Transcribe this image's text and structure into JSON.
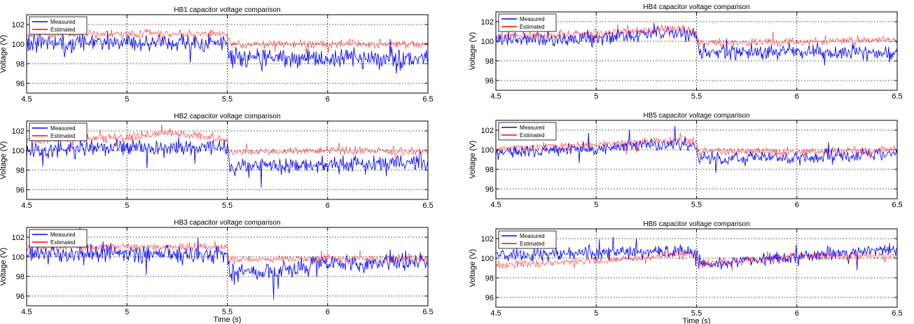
{
  "chart_data": [
    {
      "type": "line",
      "title": "HB1 capacitor voltage comparison",
      "xlabel": "",
      "ylabel": "Voltage (V)",
      "xlim": [
        4.5,
        6.5
      ],
      "ylim": [
        95,
        103
      ],
      "xticks": [
        4.5,
        5,
        5.5,
        6,
        6.5
      ],
      "xtick_labels": [
        "4.5",
        "5",
        "5.5",
        "6",
        "6.5"
      ],
      "yticks": [
        96,
        98,
        100,
        102
      ],
      "ytick_labels": [
        "96",
        "98",
        "100",
        "102"
      ],
      "grid": true,
      "legend_position": "top-left",
      "series": [
        {
          "name": "Measured",
          "color": "#0000ff",
          "x": [
            4.5,
            5.0,
            5.5,
            5.51,
            6.0,
            6.5
          ],
          "y": [
            100.2,
            100.2,
            100.0,
            98.6,
            98.6,
            98.4
          ],
          "noise": 1.4
        },
        {
          "name": "Estimated",
          "color": "#ff0000",
          "x": [
            4.5,
            5.0,
            5.5,
            5.51,
            6.0,
            6.5
          ],
          "y": [
            101.0,
            101.1,
            101.0,
            100.0,
            100.0,
            100.0
          ],
          "noise": 0.6
        }
      ]
    },
    {
      "type": "line",
      "title": "HB2 capacitor voltage comparison",
      "xlabel": "",
      "ylabel": "Voltage (V)",
      "xlim": [
        4.5,
        6.5
      ],
      "ylim": [
        95,
        103
      ],
      "xticks": [
        4.5,
        5,
        5.5,
        6,
        6.5
      ],
      "xtick_labels": [
        "4.5",
        "5",
        "5.5",
        "6",
        "6.5"
      ],
      "yticks": [
        96,
        98,
        100,
        102
      ],
      "ytick_labels": [
        "96",
        "98",
        "100",
        "102"
      ],
      "grid": true,
      "legend_position": "top-left",
      "series": [
        {
          "name": "Measured",
          "color": "#0000ff",
          "x": [
            4.5,
            5.0,
            5.5,
            5.51,
            6.0,
            6.5
          ],
          "y": [
            100.0,
            100.3,
            100.2,
            98.4,
            98.6,
            98.6
          ],
          "noise": 1.3
        },
        {
          "name": "Estimated",
          "color": "#ff0000",
          "x": [
            4.5,
            5.0,
            5.2,
            5.5,
            5.51,
            6.0,
            6.5
          ],
          "y": [
            101.0,
            101.3,
            101.8,
            101.2,
            99.8,
            100.0,
            99.9
          ],
          "noise": 0.6
        }
      ]
    },
    {
      "type": "line",
      "title": "HB3 capacitor voltage comparison",
      "xlabel": "Time (s)",
      "ylabel": "Voltage (V)",
      "xlim": [
        4.5,
        6.5
      ],
      "ylim": [
        95,
        103
      ],
      "xticks": [
        4.5,
        5,
        5.5,
        6,
        6.5
      ],
      "xtick_labels": [
        "4.5",
        "5",
        "5.5",
        "6",
        "6.5"
      ],
      "yticks": [
        96,
        98,
        100,
        102
      ],
      "ytick_labels": [
        "96",
        "98",
        "100",
        "102"
      ],
      "grid": true,
      "legend_position": "top-left",
      "series": [
        {
          "name": "Measured",
          "color": "#0000ff",
          "x": [
            4.5,
            5.0,
            5.5,
            5.51,
            5.7,
            6.0,
            6.5
          ],
          "y": [
            100.3,
            100.4,
            100.2,
            98.4,
            98.4,
            99.2,
            99.6
          ],
          "noise": 1.4
        },
        {
          "name": "Estimated",
          "color": "#ff0000",
          "x": [
            4.5,
            5.0,
            5.5,
            5.51,
            6.0,
            6.5
          ],
          "y": [
            101.0,
            101.0,
            101.0,
            99.7,
            99.8,
            99.8
          ],
          "noise": 0.6
        }
      ]
    },
    {
      "type": "line",
      "title": "HB4 capacitor voltage comparison",
      "xlabel": "",
      "ylabel": "Voltage (V)",
      "xlim": [
        4.5,
        6.5
      ],
      "ylim": [
        95,
        103
      ],
      "xticks": [
        4.5,
        5,
        5.5,
        6,
        6.5
      ],
      "xtick_labels": [
        "4.5",
        "5",
        "5.5",
        "6",
        "6.5"
      ],
      "yticks": [
        96,
        98,
        100,
        102
      ],
      "ytick_labels": [
        "96",
        "98",
        "100",
        "102"
      ],
      "grid": true,
      "legend_position": "top-left",
      "series": [
        {
          "name": "Measured",
          "color": "#0000ff",
          "x": [
            4.5,
            5.0,
            5.4,
            5.5,
            5.51,
            6.0,
            6.5
          ],
          "y": [
            100.1,
            100.3,
            101.0,
            100.5,
            98.8,
            99.0,
            98.7
          ],
          "noise": 1.1
        },
        {
          "name": "Estimated",
          "color": "#ff0000",
          "x": [
            4.5,
            5.0,
            5.4,
            5.5,
            5.51,
            6.0,
            6.5
          ],
          "y": [
            100.5,
            100.8,
            101.3,
            101.0,
            99.8,
            99.9,
            100.1
          ],
          "noise": 0.6
        }
      ]
    },
    {
      "type": "line",
      "title": "HB5 capacitor voltage comparison",
      "xlabel": "",
      "ylabel": "Voltage (V)",
      "xlim": [
        4.5,
        6.5
      ],
      "ylim": [
        95,
        103
      ],
      "xticks": [
        4.5,
        5,
        5.5,
        6,
        6.5
      ],
      "xtick_labels": [
        "4.5",
        "5",
        "5.5",
        "6",
        "6.5"
      ],
      "yticks": [
        96,
        98,
        100,
        102
      ],
      "ytick_labels": [
        "96",
        "98",
        "100",
        "102"
      ],
      "grid": true,
      "legend_position": "top-left",
      "series": [
        {
          "name": "Measured",
          "color": "#0000ff",
          "x": [
            4.5,
            5.0,
            5.4,
            5.5,
            5.51,
            6.0,
            6.5
          ],
          "y": [
            99.7,
            100.1,
            100.7,
            100.3,
            99.0,
            99.2,
            99.6
          ],
          "noise": 1.0
        },
        {
          "name": "Estimated",
          "color": "#ff0000",
          "x": [
            4.5,
            5.0,
            5.4,
            5.5,
            5.51,
            6.0,
            6.5
          ],
          "y": [
            100.1,
            100.5,
            101.0,
            100.8,
            99.8,
            99.8,
            100.0
          ],
          "noise": 0.6
        }
      ]
    },
    {
      "type": "line",
      "title": "HB6 capacitor voltage comparison",
      "xlabel": "Time (s)",
      "ylabel": "Voltage (V)",
      "xlim": [
        4.5,
        6.5
      ],
      "ylim": [
        95,
        103
      ],
      "xticks": [
        4.5,
        5,
        5.5,
        6,
        6.5
      ],
      "xtick_labels": [
        "4.5",
        "5",
        "5.5",
        "6",
        "6.5"
      ],
      "yticks": [
        96,
        98,
        100,
        102
      ],
      "ytick_labels": [
        "96",
        "98",
        "100",
        "102"
      ],
      "grid": true,
      "legend_position": "top-left",
      "series": [
        {
          "name": "Measured",
          "color": "#0000ff",
          "x": [
            4.5,
            5.0,
            5.4,
            5.5,
            5.51,
            6.0,
            6.5
          ],
          "y": [
            100.3,
            100.5,
            100.8,
            100.6,
            99.3,
            100.2,
            101.0
          ],
          "noise": 1.0
        },
        {
          "name": "Estimated",
          "color": "#ff0000",
          "x": [
            4.5,
            5.0,
            5.4,
            5.5,
            5.51,
            6.0,
            6.5
          ],
          "y": [
            99.3,
            99.7,
            100.3,
            100.4,
            99.4,
            100.2,
            100.3
          ],
          "noise": 0.6
        }
      ]
    }
  ]
}
